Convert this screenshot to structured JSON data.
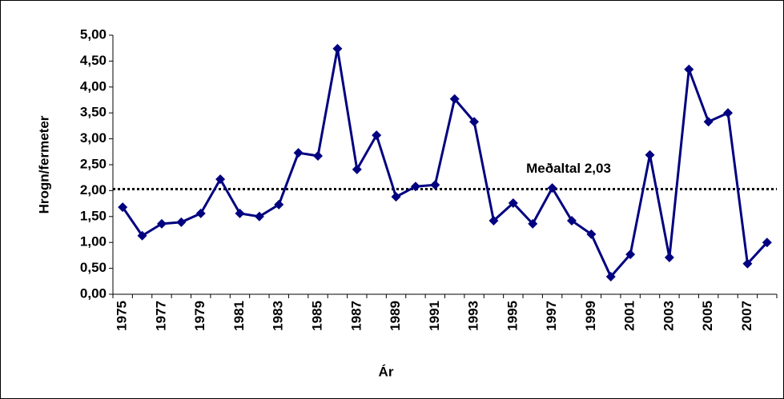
{
  "chart_data": {
    "type": "line",
    "y_label": "Hrogn/fermeter",
    "x_label": "Ár",
    "categories": [
      "1975",
      null,
      "1977",
      null,
      "1979",
      null,
      "1981",
      null,
      "1983",
      null,
      "1985",
      null,
      "1987",
      null,
      "1989",
      null,
      "1991",
      null,
      "1993",
      null,
      "1995",
      null,
      "1997",
      null,
      "1999",
      null,
      "2001",
      null,
      "2003",
      null,
      "2005",
      null,
      "2007",
      null
    ],
    "series": [
      {
        "color": "#000080",
        "values": [
          1.68,
          1.13,
          1.36,
          1.39,
          1.56,
          2.22,
          1.56,
          1.5,
          1.73,
          2.73,
          2.67,
          4.74,
          2.41,
          3.07,
          1.88,
          2.08,
          2.11,
          3.77,
          3.33,
          1.42,
          1.76,
          1.36,
          2.05,
          1.42,
          1.16,
          0.34,
          0.77,
          2.69,
          0.71,
          4.34,
          3.33,
          3.5,
          0.59,
          1.0
        ]
      }
    ],
    "mean_line": {
      "value": 2.03,
      "label": "Meðaltal 2,03"
    },
    "ylim": [
      0,
      5
    ],
    "yticks": [
      {
        "value": 0,
        "label": "0,00"
      },
      {
        "value": 0.5,
        "label": "0,50"
      },
      {
        "value": 1,
        "label": "1,00"
      },
      {
        "value": 1.5,
        "label": "1,50"
      },
      {
        "value": 2,
        "label": "2,00"
      },
      {
        "value": 2.5,
        "label": "2,50"
      },
      {
        "value": 3,
        "label": "3,00"
      },
      {
        "value": 3.5,
        "label": "3,50"
      },
      {
        "value": 4,
        "label": "4,00"
      },
      {
        "value": 4.5,
        "label": "4,50"
      },
      {
        "value": 5,
        "label": "5,00"
      }
    ]
  }
}
